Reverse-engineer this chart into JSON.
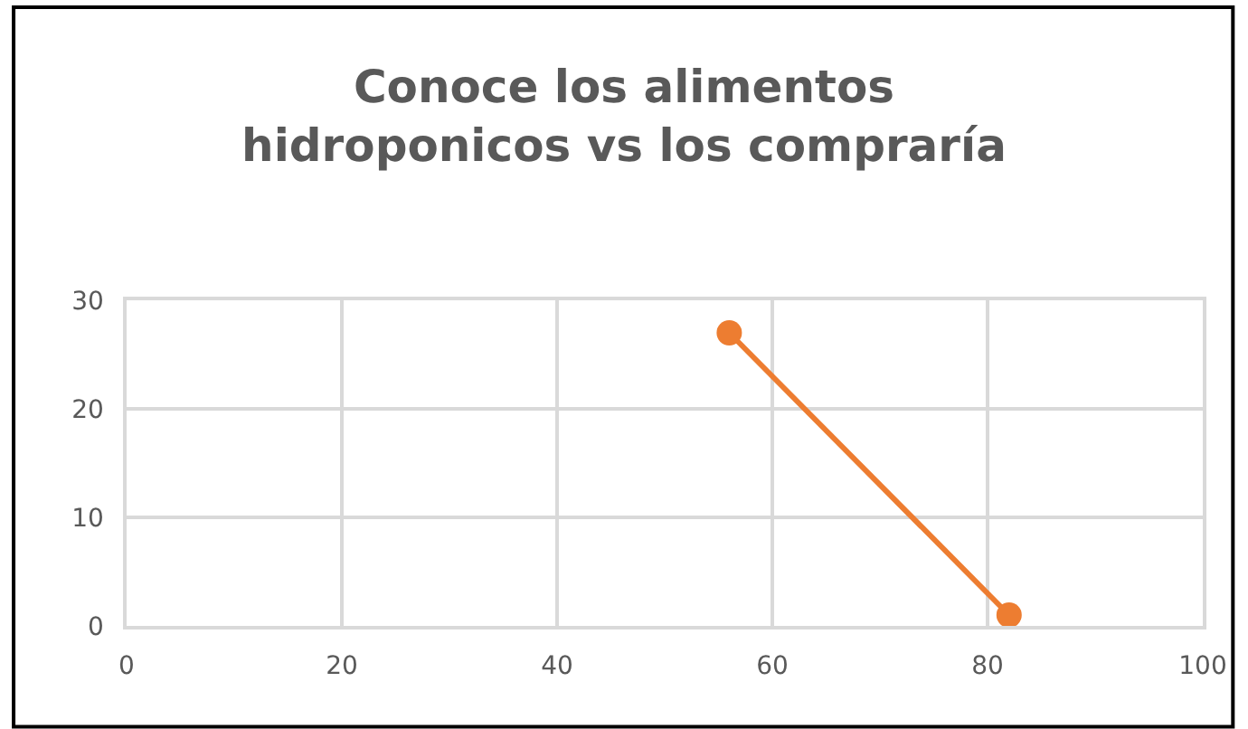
{
  "chart_data": {
    "type": "line",
    "title": "Conoce los alimentos\nhidroponicos vs los compraría",
    "x": [
      56,
      82
    ],
    "series": [
      {
        "color": "#ed7d31",
        "values": [
          27,
          1
        ]
      }
    ],
    "xlim": [
      0,
      100
    ],
    "xticks": [
      0,
      20,
      40,
      60,
      80,
      100
    ],
    "ylim": [
      0,
      30
    ],
    "yticks": [
      0,
      10,
      20,
      30
    ],
    "grid": true,
    "marker": "circle",
    "line_style": "solid"
  }
}
